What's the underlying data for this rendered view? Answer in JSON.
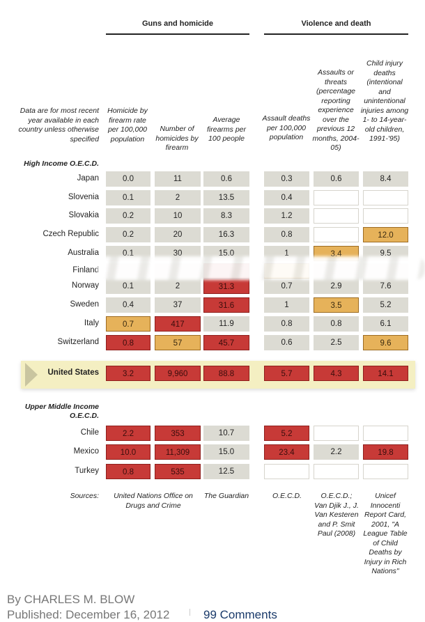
{
  "groups": {
    "guns": "Guns and homicide",
    "violence": "Violence and death"
  },
  "note": "Data are for most recent year available in each country unless otherwise specified",
  "columns": [
    "Homicide by firearm rate per 100,000 population",
    "Number of homicides by firearm",
    "Average firearms per 100 people",
    "Assault deaths per 100,000 population",
    "Assaults or threats (percentage reporting experience over the previous 12 months, 2004-05)",
    "Child injury deaths (intentional and unintentional injuries among 1- to 14-year-old children, 1991-'95)"
  ],
  "sections": {
    "high": "High Income O.E.C.D.",
    "upper": "Upper Middle Income O.E.C.D."
  },
  "legend_colors": {
    "gray": "#dcdbd3",
    "red": "#c73a37",
    "orange": "#e6b25a",
    "empty": "#ffffff"
  },
  "high_rows": [
    {
      "country": "Japan",
      "cells": [
        [
          "0.0",
          "g"
        ],
        [
          "11",
          "g"
        ],
        [
          "0.6",
          "g"
        ],
        [
          "0.3",
          "g"
        ],
        [
          "0.6",
          "g"
        ],
        [
          "8.4",
          "g"
        ]
      ]
    },
    {
      "country": "Slovenia",
      "cells": [
        [
          "0.1",
          "g"
        ],
        [
          "2",
          "g"
        ],
        [
          "13.5",
          "g"
        ],
        [
          "0.4",
          "g"
        ],
        [
          "",
          "w"
        ],
        [
          "",
          "w"
        ]
      ]
    },
    {
      "country": "Slovakia",
      "cells": [
        [
          "0.2",
          "g"
        ],
        [
          "10",
          "g"
        ],
        [
          "8.3",
          "g"
        ],
        [
          "1.2",
          "g"
        ],
        [
          "",
          "w"
        ],
        [
          "",
          "w"
        ]
      ]
    },
    {
      "country": "Czech Republic",
      "cells": [
        [
          "0.2",
          "g"
        ],
        [
          "20",
          "g"
        ],
        [
          "16.3",
          "g"
        ],
        [
          "0.8",
          "g"
        ],
        [
          "",
          "w"
        ],
        [
          "12.0",
          "o"
        ]
      ]
    },
    {
      "country": "Australia",
      "cells": [
        [
          "0.1",
          "g"
        ],
        [
          "30",
          "g"
        ],
        [
          "15.0",
          "g"
        ],
        [
          "1",
          "g"
        ],
        [
          "3.4",
          "o"
        ],
        [
          "9.5",
          "g"
        ]
      ]
    },
    {
      "country": "Finland",
      "cells": [
        [
          "",
          "g"
        ],
        [
          "",
          "g"
        ],
        [
          "",
          "r"
        ],
        [
          "",
          "o"
        ],
        [
          "",
          "g"
        ],
        [
          "",
          "g"
        ]
      ]
    },
    {
      "country": "Norway",
      "cells": [
        [
          "0.1",
          "g"
        ],
        [
          "2",
          "g"
        ],
        [
          "31.3",
          "r"
        ],
        [
          "0.7",
          "g"
        ],
        [
          "2.9",
          "g"
        ],
        [
          "7.6",
          "g"
        ]
      ]
    },
    {
      "country": "Sweden",
      "cells": [
        [
          "0.4",
          "g"
        ],
        [
          "37",
          "g"
        ],
        [
          "31.6",
          "r"
        ],
        [
          "1",
          "g"
        ],
        [
          "3.5",
          "o"
        ],
        [
          "5.2",
          "g"
        ]
      ]
    },
    {
      "country": "Italy",
      "cells": [
        [
          "0.7",
          "o"
        ],
        [
          "417",
          "r"
        ],
        [
          "11.9",
          "g"
        ],
        [
          "0.8",
          "g"
        ],
        [
          "0.8",
          "g"
        ],
        [
          "6.1",
          "g"
        ]
      ]
    },
    {
      "country": "Switzerland",
      "cells": [
        [
          "0.8",
          "r"
        ],
        [
          "57",
          "o"
        ],
        [
          "45.7",
          "r"
        ],
        [
          "0.6",
          "g"
        ],
        [
          "2.5",
          "g"
        ],
        [
          "9.6",
          "o"
        ]
      ]
    }
  ],
  "us_row": {
    "country": "United States",
    "cells": [
      [
        "3.2",
        "r"
      ],
      [
        "9,960",
        "r"
      ],
      [
        "88.8",
        "r"
      ],
      [
        "5.7",
        "r"
      ],
      [
        "4.3",
        "r"
      ],
      [
        "14.1",
        "r"
      ]
    ]
  },
  "upper_rows": [
    {
      "country": "Chile",
      "cells": [
        [
          "2.2",
          "r"
        ],
        [
          "353",
          "r"
        ],
        [
          "10.7",
          "g"
        ],
        [
          "5.2",
          "r"
        ],
        [
          "",
          "w"
        ],
        [
          "",
          "w"
        ]
      ]
    },
    {
      "country": "Mexico",
      "cells": [
        [
          "10.0",
          "r"
        ],
        [
          "11,309",
          "r"
        ],
        [
          "15.0",
          "g"
        ],
        [
          "23.4",
          "r"
        ],
        [
          "2.2",
          "g"
        ],
        [
          "19.8",
          "r"
        ]
      ]
    },
    {
      "country": "Turkey",
      "cells": [
        [
          "0.8",
          "r"
        ],
        [
          "535",
          "r"
        ],
        [
          "12.5",
          "g"
        ],
        [
          "",
          "w"
        ],
        [
          "",
          "w"
        ],
        [
          "",
          "w"
        ]
      ]
    }
  ],
  "sources": {
    "label": "Sources:",
    "s1": "United Nations Office on Drugs and Crime",
    "s2": "The Guardian",
    "s3": "O.E.C.D.",
    "s4": "O.E.C.D.; Van Djik J., J. Van Kesteren and P. Smit Paul (2008)",
    "s5": "Unicef Innocenti Report Card, 2001, \"A League Table of Child Deaths by Injury in Rich Nations\""
  },
  "byline": "By CHARLES M. BLOW",
  "published": "Published: December 16, 2012",
  "comments": "99 Comments"
}
